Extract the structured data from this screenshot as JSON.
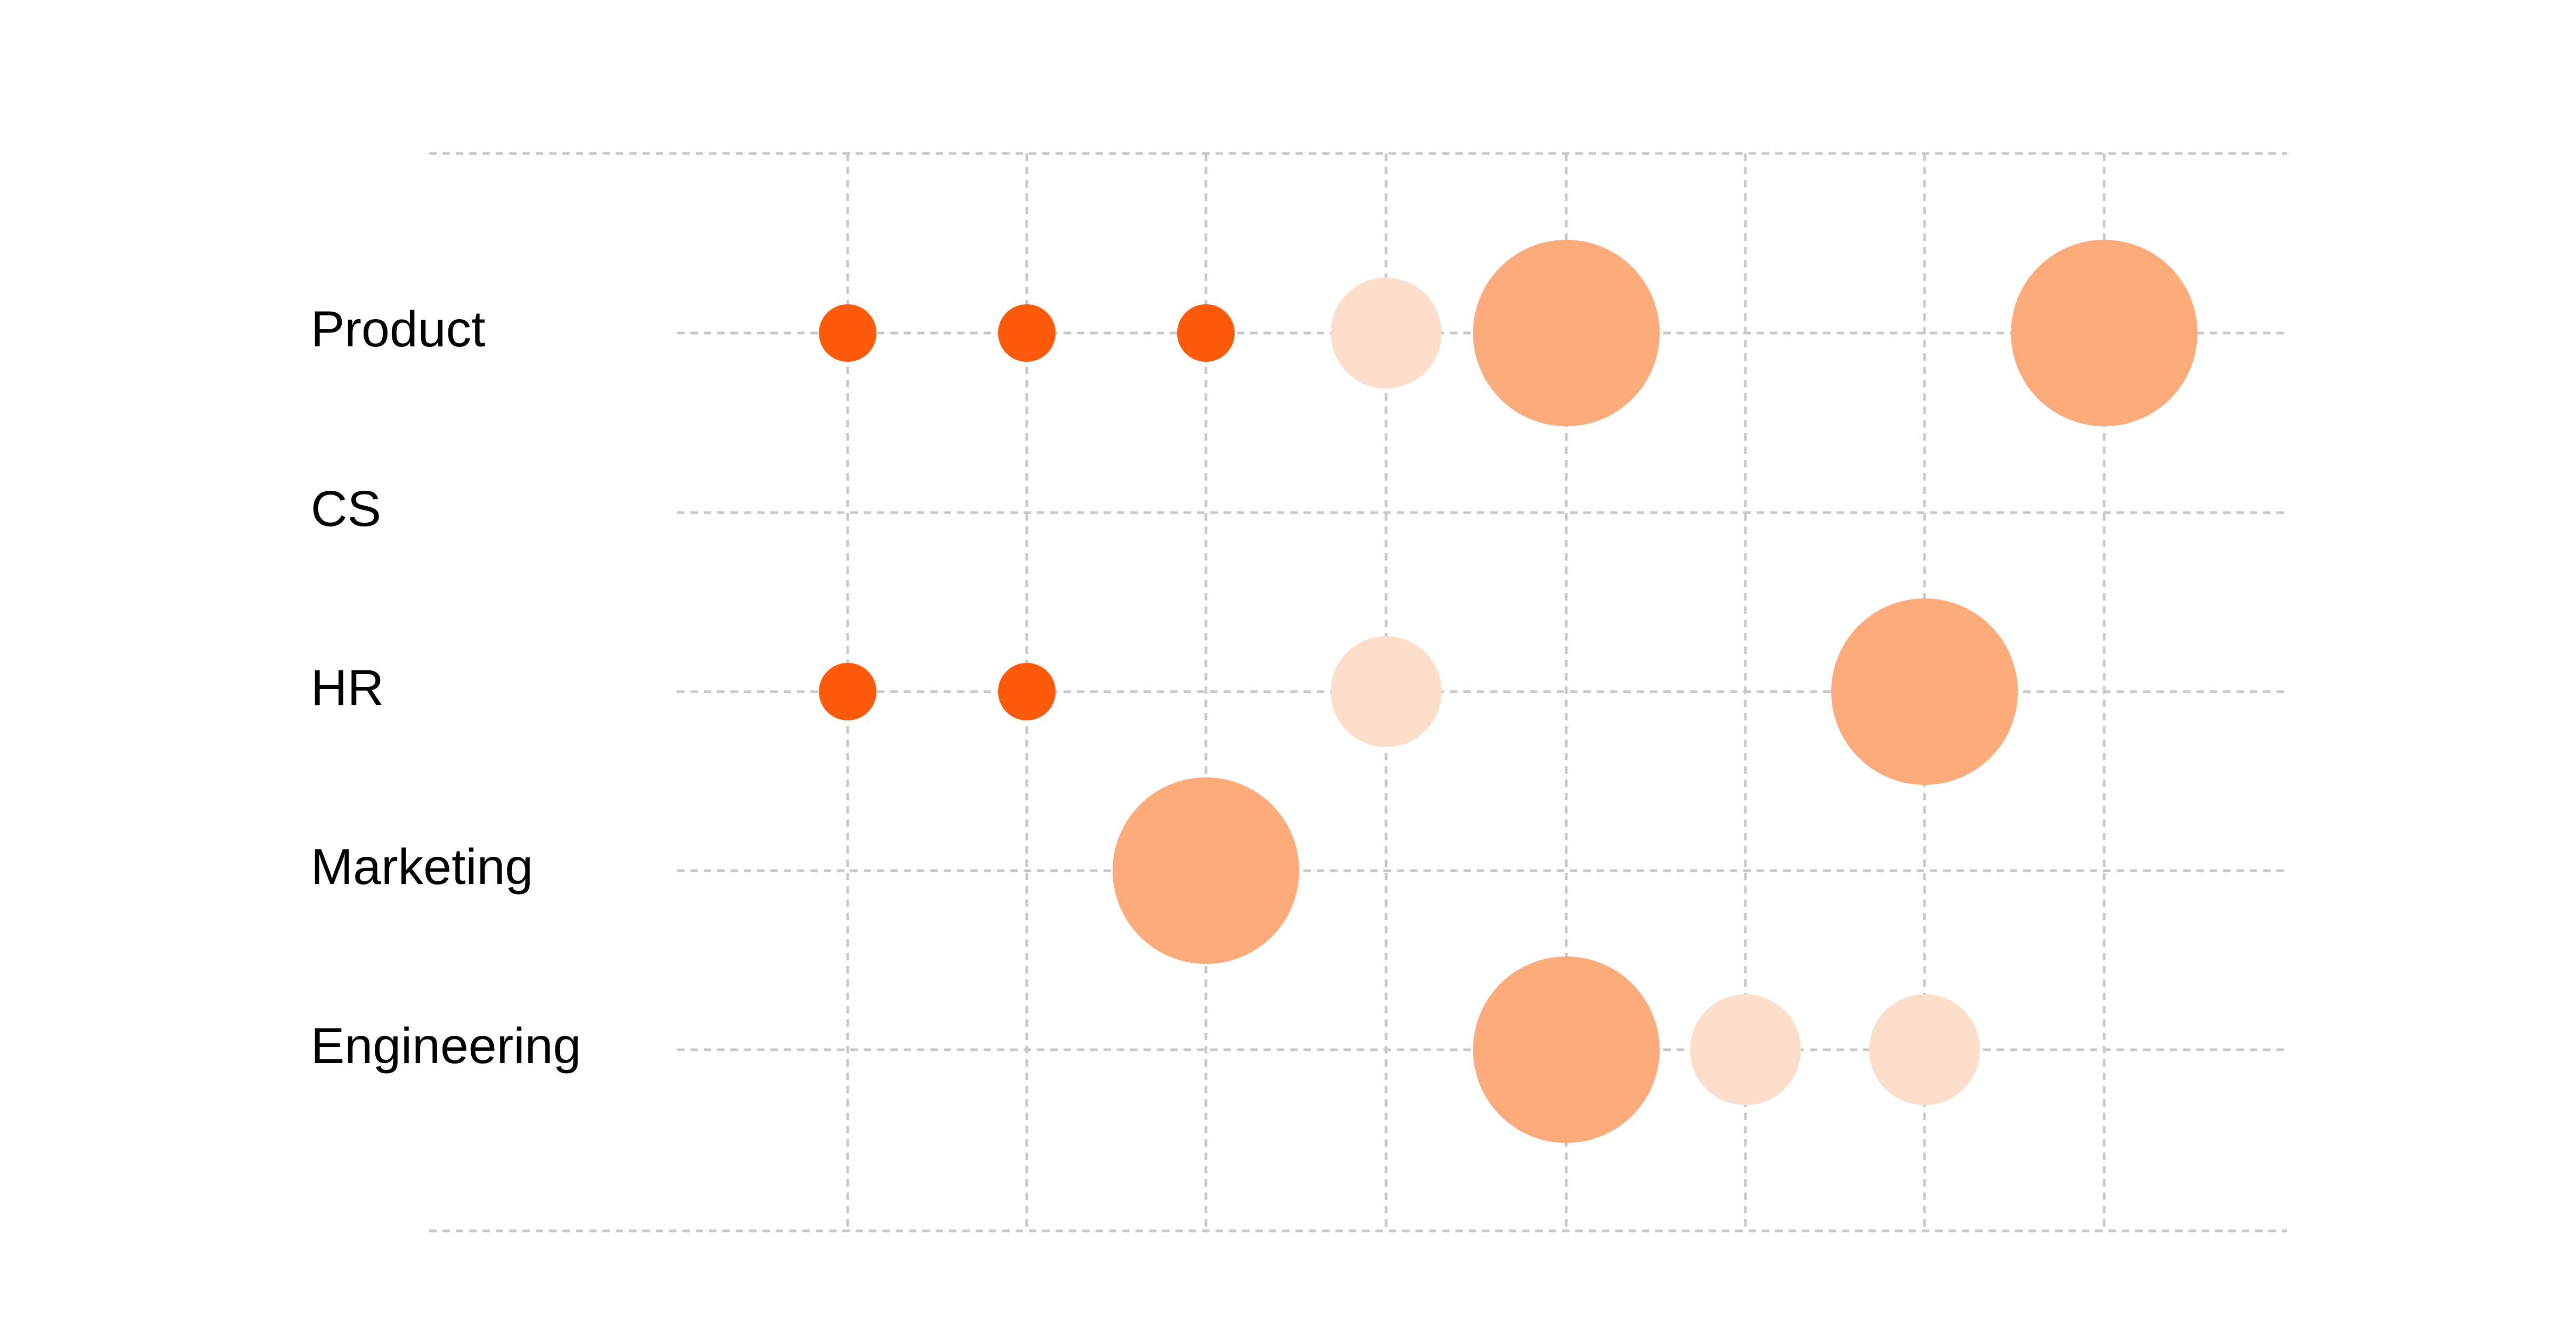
{
  "chart_data": {
    "type": "scatter",
    "categories": [
      "Product",
      "CS",
      "HR",
      "Marketing",
      "Engineering"
    ],
    "x": [
      1,
      2,
      3,
      4,
      5,
      6,
      7,
      8
    ],
    "size_levels": {
      "small": 1,
      "medium": 2,
      "large": 3
    },
    "colors": {
      "small": "#FF5A0A",
      "medium": "#FDDECB",
      "large": "#FEAB7B"
    },
    "points": [
      {
        "row": "Product",
        "x": 1,
        "size": "small"
      },
      {
        "row": "Product",
        "x": 2,
        "size": "small"
      },
      {
        "row": "Product",
        "x": 3,
        "size": "small"
      },
      {
        "row": "Product",
        "x": 4,
        "size": "medium"
      },
      {
        "row": "Product",
        "x": 5,
        "size": "large"
      },
      {
        "row": "Product",
        "x": 8,
        "size": "large"
      },
      {
        "row": "HR",
        "x": 1,
        "size": "small"
      },
      {
        "row": "HR",
        "x": 2,
        "size": "small"
      },
      {
        "row": "HR",
        "x": 4,
        "size": "medium"
      },
      {
        "row": "HR",
        "x": 7,
        "size": "large"
      },
      {
        "row": "Marketing",
        "x": 3,
        "size": "large"
      },
      {
        "row": "Engineering",
        "x": 5,
        "size": "large"
      },
      {
        "row": "Engineering",
        "x": 6,
        "size": "medium"
      },
      {
        "row": "Engineering",
        "x": 7,
        "size": "medium"
      }
    ],
    "grid": true,
    "legend": "none"
  }
}
